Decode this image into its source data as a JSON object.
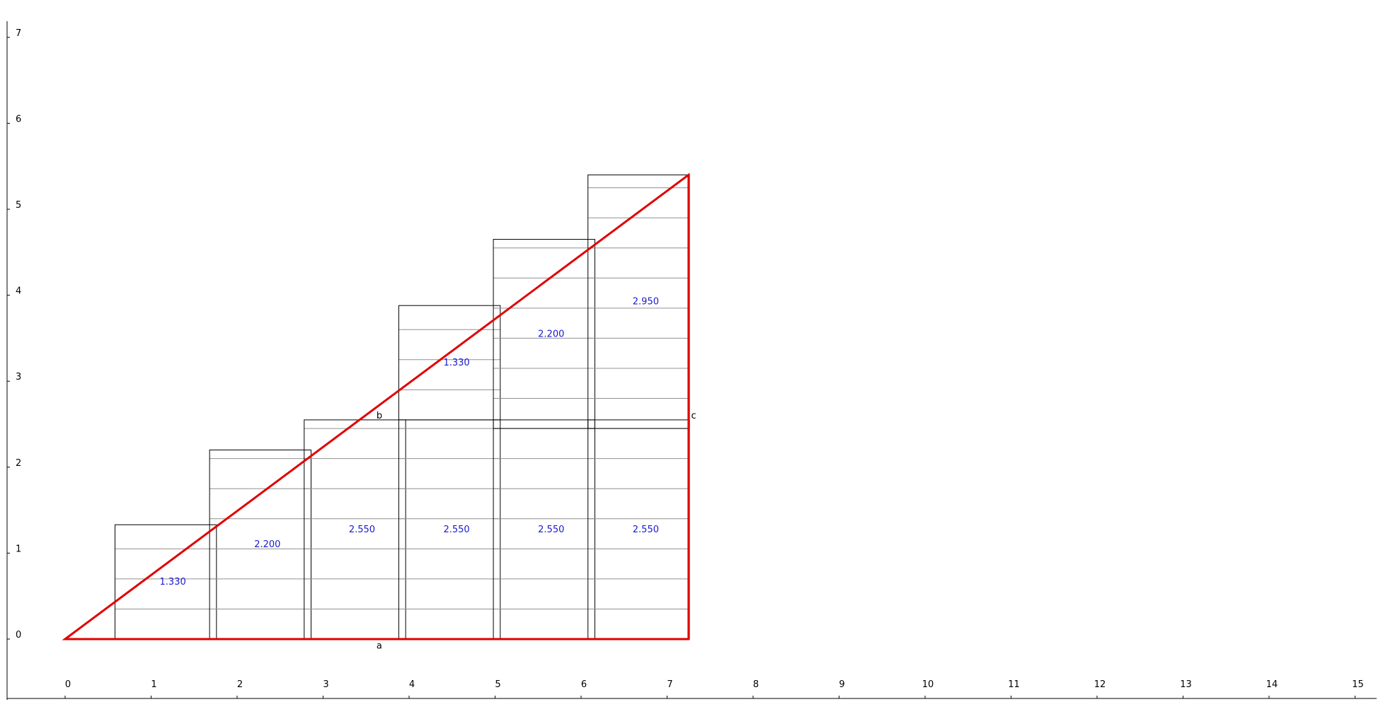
{
  "colors": {
    "triangle": "#e00000",
    "box_outline": "#000000",
    "inner_lines": "#909090",
    "value_label": "#1a1ad0",
    "axis": "#000000"
  },
  "axes": {
    "x_ticks": [
      "0",
      "1",
      "2",
      "3",
      "4",
      "5",
      "6",
      "7",
      "8",
      "9",
      "10",
      "11",
      "12",
      "13",
      "14",
      "15"
    ],
    "y_ticks": [
      "0",
      "1",
      "2",
      "3",
      "4",
      "5",
      "6",
      "7"
    ],
    "x_range": [
      0,
      15
    ],
    "y_range": [
      0,
      7
    ]
  },
  "triangle": {
    "points": [
      [
        0,
        0
      ],
      [
        7.25,
        5.4
      ],
      [
        7.25,
        0
      ]
    ],
    "side_labels": [
      {
        "text": "a",
        "x": 3.62,
        "y": -0.08
      },
      {
        "text": "b",
        "x": 3.62,
        "y": 2.6
      },
      {
        "text": "c",
        "x": 7.28,
        "y": 2.6
      }
    ]
  },
  "boxes": [
    {
      "x0": 0.58,
      "x1": 1.76,
      "height": 1.33,
      "label": "1.330"
    },
    {
      "x0": 1.68,
      "x1": 2.86,
      "height": 2.2,
      "label": "2.200"
    },
    {
      "x0": 2.78,
      "x1": 3.96,
      "height": 2.55,
      "label": "2.550"
    },
    {
      "x0": 3.88,
      "x1": 5.06,
      "height": 2.55,
      "label": "2.550"
    },
    {
      "x0": 4.98,
      "x1": 6.16,
      "height": 2.55,
      "label": "2.550"
    },
    {
      "x0": 6.08,
      "x1": 7.26,
      "height": 2.55,
      "label": "2.550"
    },
    {
      "x0": 3.88,
      "x1": 5.06,
      "base": 2.55,
      "height": 1.33,
      "label": "1.330"
    },
    {
      "x0": 4.98,
      "x1": 6.16,
      "base": 2.45,
      "height": 2.2,
      "label": "2.200"
    },
    {
      "x0": 6.08,
      "x1": 7.26,
      "base": 2.45,
      "height": 2.95,
      "label": "2.950"
    }
  ],
  "inner_line_spacing": 0.35
}
